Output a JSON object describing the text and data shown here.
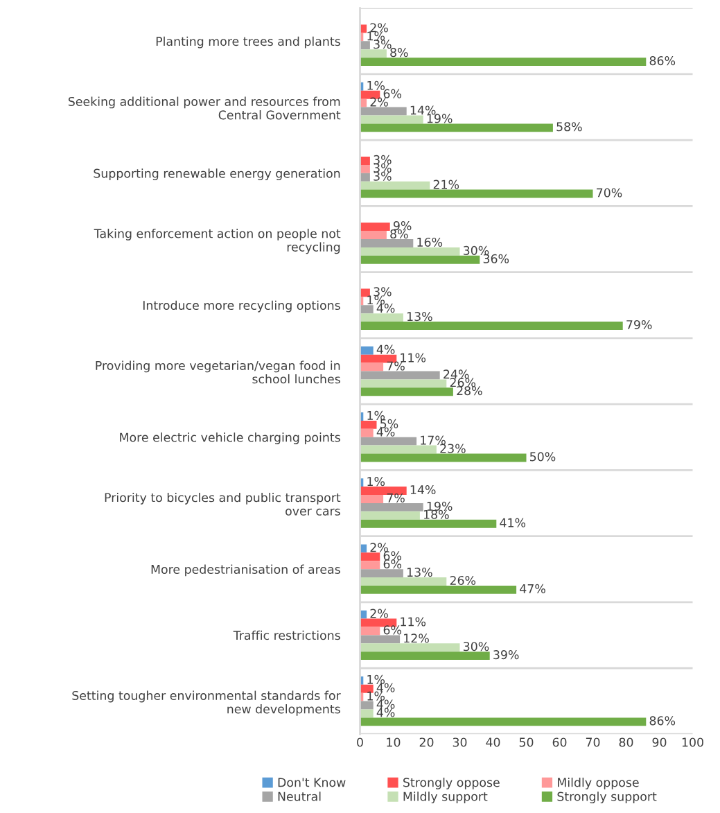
{
  "chart_data": {
    "type": "bar",
    "orientation": "horizontal",
    "categories": [
      "Planting more trees and plants",
      "Seeking additional power and resources from Central Government",
      "Supporting renewable energy generation",
      "Taking enforcement action on people not recycling",
      "Introduce more recycling options",
      "Providing more vegetarian/vegan food in school lunches",
      "More electric vehicle charging points",
      "Priority to bicycles and public transport over cars",
      "More pedestrianisation of areas",
      "Traffic restrictions",
      "Setting tougher environmental standards for new developments"
    ],
    "series": [
      {
        "name": "Don't Know",
        "color": "#5b9bd5",
        "values": [
          0,
          1,
          0,
          0,
          0,
          4,
          1,
          1,
          2,
          2,
          1
        ],
        "value_labels": [
          null,
          "1%",
          null,
          null,
          null,
          "4%",
          "1%",
          "1%",
          "2%",
          "2%",
          "1%"
        ]
      },
      {
        "name": "Strongly oppose",
        "color": "#ff5050",
        "values": [
          2,
          6,
          3,
          9,
          3,
          11,
          5,
          14,
          6,
          11,
          4
        ],
        "value_labels": [
          "2%",
          "6%",
          "3%",
          "9%",
          "3%",
          "11%",
          "5%",
          "14%",
          "6%",
          "11%",
          "4%"
        ]
      },
      {
        "name": "Mildly oppose",
        "color": "#ff9999",
        "values": [
          1,
          2,
          3,
          8,
          1,
          7,
          4,
          7,
          6,
          6,
          1
        ],
        "value_labels": [
          "1%",
          "2%",
          "3%",
          "8%",
          "1%",
          "7%",
          "4%",
          "7%",
          "6%",
          "6%",
          "1%"
        ]
      },
      {
        "name": "Neutral",
        "color": "#a5a5a5",
        "values": [
          3,
          14,
          3,
          16,
          4,
          24,
          17,
          19,
          13,
          12,
          4
        ],
        "value_labels": [
          "3%",
          "14%",
          "3%",
          "16%",
          "4%",
          "24%",
          "17%",
          "19%",
          "13%",
          "12%",
          "4%"
        ]
      },
      {
        "name": "Mildly support",
        "color": "#c5e0b4",
        "values": [
          8,
          19,
          21,
          30,
          13,
          26,
          23,
          18,
          26,
          30,
          4
        ],
        "value_labels": [
          "8%",
          "19%",
          "21%",
          "30%",
          "13%",
          "26%",
          "23%",
          "18%",
          "26%",
          "30%",
          "4%"
        ]
      },
      {
        "name": "Strongly support",
        "color": "#70ad47",
        "values": [
          86,
          58,
          70,
          36,
          79,
          28,
          50,
          41,
          47,
          39,
          86
        ],
        "value_labels": [
          "86%",
          "58%",
          "70%",
          "36%",
          "79%",
          "28%",
          "50%",
          "41%",
          "47%",
          "39%",
          "86%"
        ]
      }
    ],
    "xlim": [
      0,
      100
    ],
    "xticks": [
      0,
      10,
      20,
      30,
      40,
      50,
      60,
      70,
      80,
      90,
      100
    ],
    "grid": "y",
    "legend": "bottom"
  }
}
